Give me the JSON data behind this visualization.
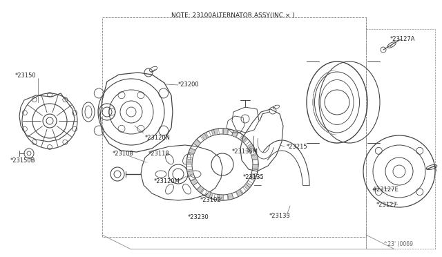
{
  "bg_color": "#ffffff",
  "line_color": "#444444",
  "text_color": "#222222",
  "title_text": "NOTE: 23100ALTERNATOR ASSY(INC.× )",
  "labels": {
    "23127A": "*23127A",
    "23150": "*23150",
    "23200": "*23200",
    "23120N": "*23120N",
    "23118": "*23118",
    "23108": "*23108",
    "23150B": "*23150B",
    "23120M": "*23120M",
    "23102": "*23102",
    "23230": "*23230",
    "23135M": "*23135M",
    "23215": "*23215",
    "23135": "*23135",
    "23133": "*23133",
    "23127E": "#23127E",
    "23127": "*23127"
  },
  "diagram_id": "^23' )0069",
  "fs_label": 6.0,
  "fs_title": 6.5,
  "fs_id": 5.5
}
